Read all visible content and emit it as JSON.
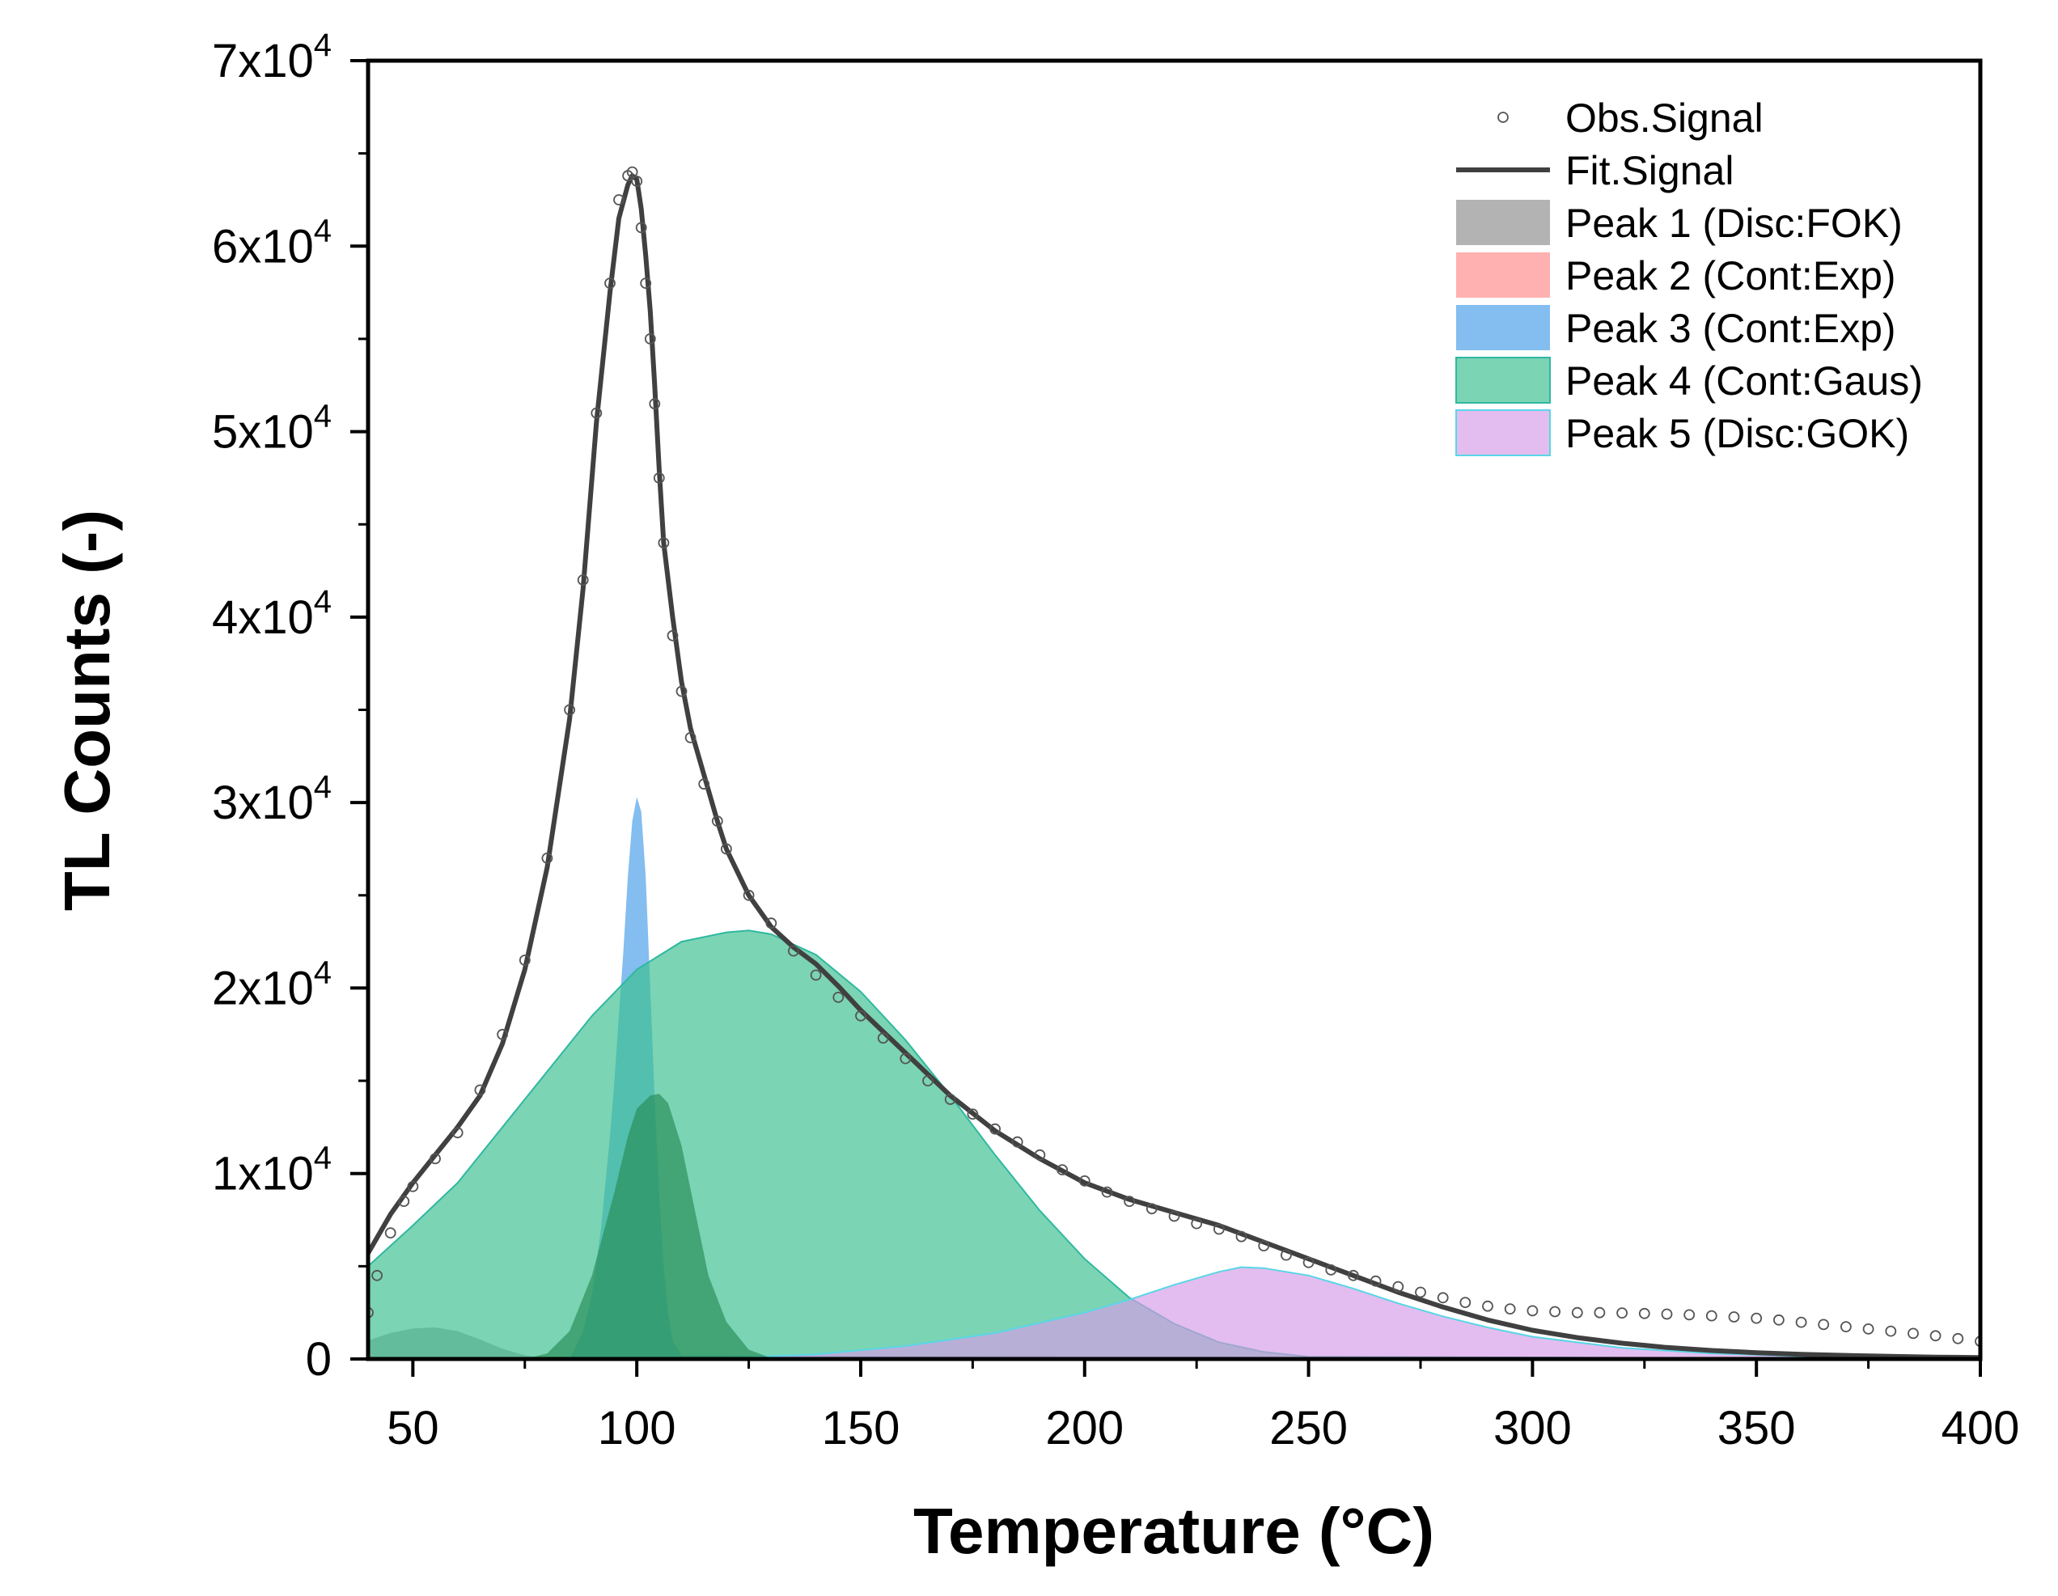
{
  "chart_data": {
    "type": "area",
    "xlabel": "Temperature (°C)",
    "ylabel": "TL Counts (-)",
    "xlim": [
      40,
      400
    ],
    "ylim": [
      0,
      70000
    ],
    "x_ticks": [
      50,
      100,
      150,
      200,
      250,
      300,
      350,
      400
    ],
    "x_tick_labels": [
      "50",
      "100",
      "150",
      "200",
      "250",
      "300",
      "350",
      "400"
    ],
    "y_ticks": [
      0,
      10000,
      20000,
      30000,
      40000,
      50000,
      60000,
      70000
    ],
    "y_tick_labels": [
      {
        "mantissa": "0",
        "exp": ""
      },
      {
        "mantissa": "1x10",
        "exp": "4"
      },
      {
        "mantissa": "2x10",
        "exp": "4"
      },
      {
        "mantissa": "3x10",
        "exp": "4"
      },
      {
        "mantissa": "4x10",
        "exp": "4"
      },
      {
        "mantissa": "5x10",
        "exp": "4"
      },
      {
        "mantissa": "6x10",
        "exp": "4"
      },
      {
        "mantissa": "7x10",
        "exp": "4"
      }
    ],
    "legend_position": "top-right",
    "series": [
      {
        "name": "Obs.Signal",
        "kind": "scatter",
        "color": "#555555",
        "x": [
          40,
          42,
          45,
          48,
          50,
          55,
          60,
          65,
          70,
          75,
          80,
          85,
          88,
          91,
          94,
          96,
          98,
          99,
          100,
          101,
          102,
          103,
          104,
          105,
          106,
          108,
          110,
          112,
          115,
          118,
          120,
          125,
          130,
          135,
          140,
          145,
          150,
          155,
          160,
          165,
          170,
          175,
          180,
          185,
          190,
          195,
          200,
          205,
          210,
          215,
          220,
          225,
          230,
          235,
          240,
          245,
          250,
          255,
          260,
          265,
          270,
          275,
          280,
          285,
          290,
          295,
          300,
          305,
          310,
          315,
          320,
          325,
          330,
          335,
          340,
          345,
          350,
          355,
          360,
          365,
          370,
          375,
          380,
          385,
          390,
          395,
          400
        ],
        "y": [
          2500,
          4500,
          6800,
          8500,
          9300,
          10800,
          12200,
          14500,
          17500,
          21500,
          27000,
          35000,
          42000,
          51000,
          58000,
          62500,
          63800,
          64000,
          63500,
          61000,
          58000,
          55000,
          51500,
          47500,
          44000,
          39000,
          36000,
          33500,
          31000,
          29000,
          27500,
          25000,
          23500,
          22000,
          20700,
          19500,
          18500,
          17300,
          16200,
          15000,
          14000,
          13200,
          12400,
          11700,
          11000,
          10200,
          9600,
          9000,
          8500,
          8100,
          7700,
          7300,
          7000,
          6600,
          6100,
          5600,
          5200,
          4800,
          4500,
          4200,
          3900,
          3600,
          3300,
          3050,
          2850,
          2700,
          2600,
          2550,
          2500,
          2500,
          2480,
          2450,
          2420,
          2380,
          2330,
          2270,
          2200,
          2100,
          1980,
          1860,
          1740,
          1620,
          1500,
          1380,
          1250,
          1100,
          950
        ]
      },
      {
        "name": "Fit.Signal",
        "kind": "line",
        "color": "#404040",
        "x": [
          40,
          45,
          50,
          55,
          60,
          65,
          70,
          75,
          80,
          85,
          88,
          91,
          94,
          96,
          98,
          99,
          100,
          101,
          102,
          103,
          104,
          105,
          106,
          108,
          110,
          112,
          115,
          118,
          120,
          125,
          130,
          135,
          140,
          145,
          150,
          160,
          170,
          180,
          190,
          200,
          210,
          220,
          230,
          240,
          250,
          260,
          270,
          280,
          290,
          300,
          310,
          320,
          330,
          340,
          350,
          360,
          370,
          380,
          390,
          400
        ],
        "y": [
          5700,
          7800,
          9500,
          11000,
          12500,
          14200,
          17000,
          21000,
          26500,
          34500,
          41500,
          50500,
          57500,
          61500,
          63300,
          63800,
          63600,
          62000,
          59500,
          56500,
          52500,
          48000,
          44000,
          40000,
          36500,
          34000,
          31500,
          29000,
          27500,
          25000,
          23300,
          22200,
          21300,
          20100,
          18800,
          16500,
          14200,
          12300,
          10800,
          9500,
          8600,
          7900,
          7200,
          6300,
          5400,
          4500,
          3600,
          2800,
          2100,
          1550,
          1150,
          850,
          620,
          460,
          340,
          250,
          190,
          140,
          100,
          80
        ]
      },
      {
        "name": "Peak 1 (Disc:FOK)",
        "kind": "area",
        "color": "#8f8f8f",
        "x": [
          40,
          45,
          50,
          55,
          60,
          65,
          70,
          75,
          80,
          400
        ],
        "y": [
          1000,
          1400,
          1650,
          1700,
          1500,
          1050,
          550,
          200,
          40,
          0
        ]
      },
      {
        "name": "Peak 2 (Cont:Exp)",
        "kind": "area",
        "color": "#ff8b8b",
        "x": [
          40,
          45,
          50,
          55,
          60,
          65,
          70,
          400
        ],
        "y": [
          0,
          0,
          0,
          0,
          0,
          0,
          0,
          0
        ]
      },
      {
        "name": "Peak 3 (Cont:Exp)",
        "kind": "area",
        "color": "#4a9de8",
        "x": [
          40,
          85,
          88,
          90,
          92,
          94,
          95,
          96,
          97,
          98,
          99,
          100,
          101,
          102,
          103,
          104,
          105,
          106,
          107,
          108,
          110,
          400
        ],
        "y": [
          0,
          0,
          1500,
          3500,
          7000,
          12000,
          15000,
          18500,
          22000,
          26000,
          29000,
          30300,
          29500,
          26000,
          20000,
          14000,
          9000,
          5000,
          2500,
          1000,
          200,
          0
        ]
      },
      {
        "name": "Peak 4 (Cont:Gaus)",
        "kind": "area",
        "color": "#3cc091",
        "x": [
          40,
          50,
          60,
          70,
          80,
          90,
          100,
          110,
          120,
          125,
          130,
          140,
          150,
          160,
          170,
          180,
          190,
          200,
          210,
          220,
          230,
          240,
          250,
          400
        ],
        "y": [
          5000,
          7200,
          9500,
          12500,
          15500,
          18500,
          21000,
          22500,
          23000,
          23100,
          22900,
          21800,
          19800,
          17200,
          14200,
          11000,
          8000,
          5400,
          3300,
          1900,
          900,
          380,
          120,
          0
        ]
      },
      {
        "name": "Peak 5 (Disc:GOK)",
        "kind": "area",
        "color": "#d69ee8",
        "x": [
          40,
          120,
          140,
          160,
          180,
          200,
          210,
          220,
          230,
          235,
          240,
          250,
          260,
          270,
          280,
          290,
          300,
          320,
          340,
          360,
          380,
          400
        ],
        "y": [
          0,
          50,
          250,
          700,
          1400,
          2500,
          3200,
          4000,
          4700,
          4950,
          4900,
          4500,
          3800,
          3000,
          2300,
          1700,
          1200,
          600,
          300,
          150,
          70,
          30
        ]
      },
      {
        "name": "peak-1-near-100",
        "kind": "area",
        "color": "#2a8f58",
        "legend": false,
        "x": [
          40,
          75,
          80,
          85,
          90,
          95,
          98,
          100,
          103,
          105,
          107,
          110,
          113,
          116,
          120,
          125,
          130,
          400
        ],
        "y": [
          0,
          0,
          300,
          1500,
          4500,
          9000,
          12000,
          13500,
          14200,
          14300,
          13800,
          11500,
          8000,
          4500,
          2000,
          500,
          50,
          0
        ]
      }
    ]
  },
  "style": {
    "axis_color": "#000000",
    "peak4_stroke": "#2fb8a0",
    "peak5_stroke": "#59d6e6"
  }
}
